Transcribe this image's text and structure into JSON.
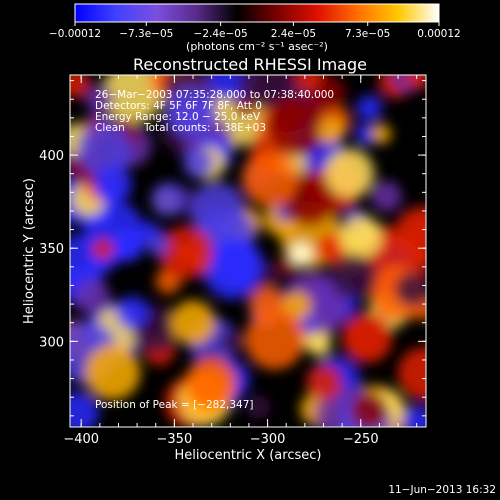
{
  "chart_data": {
    "type": "heatmap",
    "title": "Reconstructed RHESSI Image",
    "xlabel": "Heliocentric X (arcsec)",
    "ylabel": "Heliocentric Y (arcsec)",
    "xlim": [
      -406,
      -215
    ],
    "ylim": [
      254,
      443
    ],
    "x_ticks": [
      -400,
      -350,
      -300,
      -250
    ],
    "x_tick_labels": [
      "−400",
      "−350",
      "−300",
      "−250"
    ],
    "y_ticks": [
      300,
      350,
      400
    ],
    "y_tick_labels": [
      "300",
      "350",
      "400"
    ],
    "colorbar": {
      "range": [
        -0.00012,
        0.00012
      ],
      "tick_values": [
        -0.00012,
        -7.3e-05,
        -2.4e-05,
        2.4e-05,
        7.3e-05,
        0.00012
      ],
      "tick_labels": [
        "−0.00012",
        "−7.3e−05",
        "−2.4e−05",
        "2.4e−05",
        "7.3e−05",
        "0.00012"
      ],
      "unit_label": "(photons cm⁻² s⁻¹ asec⁻²)"
    },
    "annotations": {
      "time_range": "26−Mar−2003 07:35:28.000 to 07:38:40.000",
      "detectors": "Detectors: 4F 5F 6F 7F 8F, Att 0",
      "energy_range": "Energy Range: 12.0 − 25.0 keV",
      "clean": "Clean",
      "total_counts": "Total counts: 1.38E+03",
      "peak_position": "Position of Peak = [−282,347]"
    },
    "peak": {
      "x": -282,
      "y": 347
    },
    "footer_date": "11−Jun−2013 16:32",
    "colormap": [
      "#0000ff",
      "#4040ff",
      "#7a50e0",
      "#5a2a8a",
      "#000000",
      "#7a0000",
      "#e01000",
      "#ff7000",
      "#ffc800",
      "#ffffff"
    ]
  }
}
